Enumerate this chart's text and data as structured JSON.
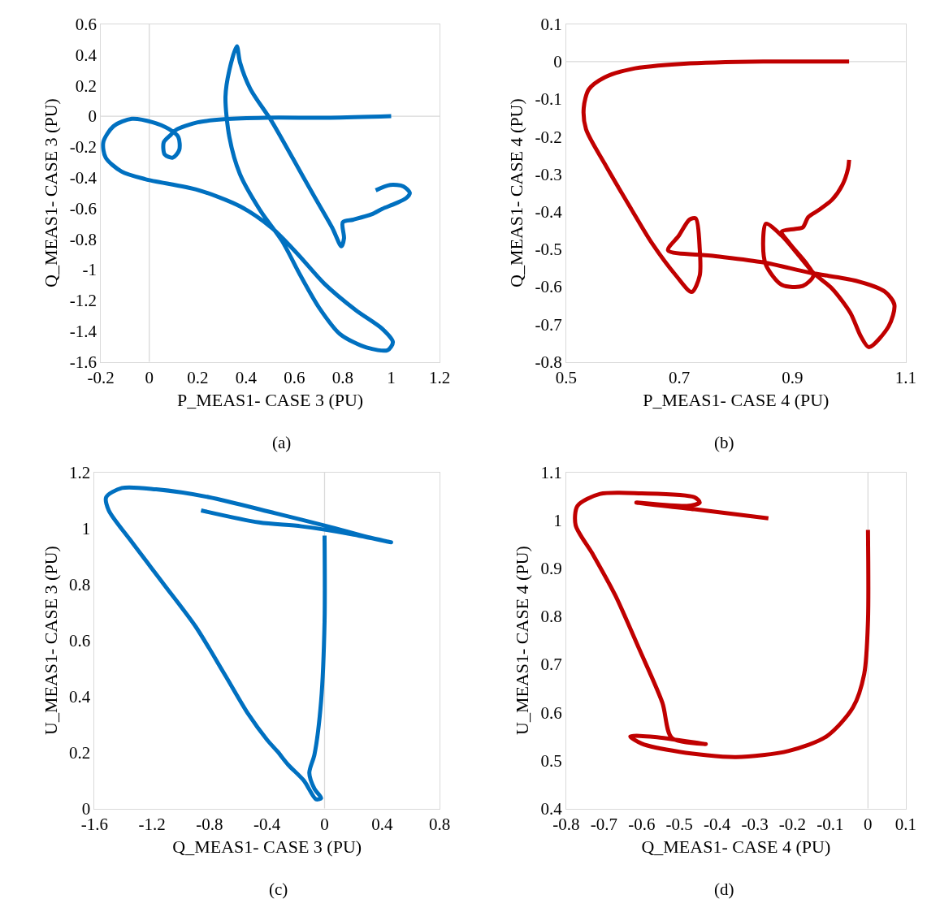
{
  "chart_data": [
    {
      "type": "line",
      "xlabel": "P_MEAS1- CASE 3 (PU)",
      "ylabel": "Q_MEAS1- CASE 3 (PU)",
      "annotations": [
        "(a)"
      ],
      "line_style": "solid",
      "grid": false,
      "xlim": [
        -0.2,
        1.2
      ],
      "xticks": [
        -0.2,
        0,
        0.2,
        0.4,
        0.6,
        0.8,
        1,
        1.2
      ],
      "ylim": [
        -1.6,
        0.6
      ],
      "yticks": [
        -1.6,
        -1.4,
        -1.2,
        -1,
        -0.8,
        -0.6,
        -0.4,
        -0.2,
        0,
        0.2,
        0.4,
        0.6
      ],
      "ref_lines": [
        {
          "axis": "x",
          "value": 0,
          "color": "#d9d9d9"
        },
        {
          "axis": "y",
          "value": 0,
          "color": "#d9d9d9"
        }
      ],
      "series": [
        {
          "color": "#0070c0",
          "x": [
            1.0,
            0.75,
            0.48,
            0.31,
            0.2,
            0.11,
            0.09,
            0.06,
            0.064,
            0.097,
            0.124,
            0.12,
            0.08,
            0.015,
            -0.072,
            -0.148,
            -0.19,
            -0.18,
            -0.115,
            -0.017,
            0.2,
            0.375,
            0.505,
            0.614,
            0.723,
            0.854,
            0.963,
            1.007,
            0.985,
            0.898,
            0.789,
            0.702,
            0.625,
            0.549,
            0.462,
            0.375,
            0.331,
            0.315,
            0.331,
            0.362,
            0.375,
            0.418,
            0.505,
            0.593,
            0.68,
            0.756,
            0.794,
            0.805,
            0.8,
            0.843,
            0.919,
            0.963,
            1.017,
            1.061,
            1.077,
            1.05,
            0.996,
            0.936
          ],
          "values": [
            0.0,
            -0.01,
            -0.01,
            -0.02,
            -0.04,
            -0.09,
            -0.12,
            -0.17,
            -0.25,
            -0.27,
            -0.22,
            -0.135,
            -0.083,
            -0.04,
            -0.017,
            -0.066,
            -0.17,
            -0.27,
            -0.36,
            -0.41,
            -0.48,
            -0.587,
            -0.726,
            -0.899,
            -1.09,
            -1.264,
            -1.385,
            -1.472,
            -1.524,
            -1.507,
            -1.42,
            -1.247,
            -1.038,
            -0.813,
            -0.622,
            -0.378,
            -0.135,
            0.125,
            0.299,
            0.455,
            0.351,
            0.177,
            -0.031,
            -0.274,
            -0.517,
            -0.726,
            -0.847,
            -0.795,
            -0.691,
            -0.674,
            -0.639,
            -0.604,
            -0.569,
            -0.535,
            -0.5,
            -0.457,
            -0.448,
            -0.483
          ]
        }
      ]
    },
    {
      "type": "line",
      "xlabel": "P_MEAS1- CASE 4 (PU)",
      "ylabel": "Q_MEAS1- CASE 4 (PU)",
      "annotations": [
        "(b)"
      ],
      "line_style": "solid",
      "grid": false,
      "xlim": [
        0.5,
        1.1
      ],
      "xticks": [
        0.5,
        0.7,
        0.9,
        1.1
      ],
      "ylim": [
        -0.8,
        0.1
      ],
      "yticks": [
        -0.8,
        -0.7,
        -0.6,
        -0.5,
        -0.4,
        -0.3,
        -0.2,
        -0.1,
        0,
        0.1
      ],
      "ref_lines": [
        {
          "axis": "y",
          "value": 0,
          "color": "#d9d9d9"
        }
      ],
      "series": [
        {
          "color": "#c00000",
          "x": [
            1.0,
            0.848,
            0.708,
            0.615,
            0.568,
            0.54,
            0.531,
            0.535,
            0.568,
            0.615,
            0.652,
            0.694,
            0.722,
            0.736,
            0.736,
            0.729,
            0.718,
            0.699,
            0.68,
            0.755,
            0.848,
            0.932,
            1.012,
            1.063,
            1.08,
            1.07,
            1.035,
            1.021,
            1.002,
            0.97,
            0.937,
            0.909,
            0.881,
            0.853,
            0.848,
            0.853,
            0.881,
            0.918,
            0.937,
            0.923,
            0.895,
            0.881,
            0.904,
            0.918,
            0.928,
            0.946,
            0.97,
            0.988,
            0.998,
            1.0
          ],
          "values": [
            0.0,
            0.0,
            -0.006,
            -0.02,
            -0.042,
            -0.074,
            -0.123,
            -0.18,
            -0.272,
            -0.393,
            -0.485,
            -0.57,
            -0.614,
            -0.57,
            -0.499,
            -0.418,
            -0.421,
            -0.464,
            -0.503,
            -0.517,
            -0.535,
            -0.563,
            -0.584,
            -0.613,
            -0.648,
            -0.705,
            -0.761,
            -0.733,
            -0.669,
            -0.605,
            -0.563,
            -0.513,
            -0.464,
            -0.432,
            -0.485,
            -0.542,
            -0.595,
            -0.598,
            -0.57,
            -0.535,
            -0.485,
            -0.453,
            -0.446,
            -0.442,
            -0.414,
            -0.396,
            -0.368,
            -0.329,
            -0.286,
            -0.262
          ]
        }
      ]
    },
    {
      "type": "line",
      "xlabel": "Q_MEAS1- CASE 3 (PU)",
      "ylabel": "U_MEAS1- CASE 3 (PU)",
      "annotations": [
        "(c)"
      ],
      "line_style": "solid",
      "grid": false,
      "xlim": [
        -1.6,
        0.8
      ],
      "xticks": [
        -1.6,
        -1.2,
        -0.8,
        -0.4,
        0,
        0.4,
        0.8
      ],
      "ylim": [
        0,
        1.2
      ],
      "yticks": [
        0,
        0.2,
        0.4,
        0.6,
        0.8,
        1,
        1.2
      ],
      "ref_lines": [
        {
          "axis": "x",
          "value": 0,
          "color": "#d9d9d9"
        }
      ],
      "series": [
        {
          "color": "#0070c0",
          "x": [
            0.0,
            0.0,
            -0.024,
            -0.07,
            -0.106,
            -0.07,
            -0.024,
            -0.06,
            -0.143,
            -0.253,
            -0.327,
            -0.4,
            -0.528,
            -0.693,
            -0.895,
            -1.116,
            -1.354,
            -1.501,
            -1.519,
            -1.409,
            -1.171,
            -0.804,
            -0.345,
            0.022,
            0.297,
            0.463,
            0.187,
            -0.161,
            -0.455,
            -0.859
          ],
          "values": [
            0.974,
            0.666,
            0.383,
            0.193,
            0.127,
            0.07,
            0.037,
            0.033,
            0.099,
            0.156,
            0.203,
            0.245,
            0.335,
            0.477,
            0.648,
            0.799,
            0.96,
            1.064,
            1.111,
            1.144,
            1.139,
            1.111,
            1.054,
            1.007,
            0.969,
            0.95,
            0.979,
            1.007,
            1.021,
            1.064
          ]
        }
      ]
    },
    {
      "type": "line",
      "xlabel": "Q_MEAS1- CASE 4 (PU)",
      "ylabel": "U_MEAS1- CASE 4 (PU)",
      "annotations": [
        "(d)"
      ],
      "line_style": "solid",
      "grid": false,
      "xlim": [
        -0.8,
        0.1
      ],
      "xticks": [
        -0.8,
        -0.7,
        -0.6,
        -0.5,
        -0.4,
        -0.3,
        -0.2,
        -0.1,
        0,
        0.1
      ],
      "ylim": [
        0.4,
        1.1
      ],
      "yticks": [
        0.4,
        0.5,
        0.6,
        0.7,
        0.8,
        0.9,
        1,
        1.1
      ],
      "ref_lines": [
        {
          "axis": "x",
          "value": 0,
          "color": "#d9d9d9"
        }
      ],
      "series": [
        {
          "color": "#c00000",
          "x": [
            0.0,
            0.0,
            -0.01,
            -0.04,
            -0.11,
            -0.21,
            -0.35,
            -0.5,
            -0.6,
            -0.63,
            -0.565,
            -0.43,
            -0.52,
            -0.545,
            -0.607,
            -0.67,
            -0.73,
            -0.775,
            -0.77,
            -0.71,
            -0.6,
            -0.46,
            -0.446,
            -0.48,
            -0.614,
            -0.46,
            -0.264
          ],
          "values": [
            0.98,
            0.79,
            0.68,
            0.61,
            0.55,
            0.52,
            0.507,
            0.518,
            0.535,
            0.55,
            0.549,
            0.534,
            0.547,
            0.62,
            0.733,
            0.844,
            0.93,
            0.99,
            1.03,
            1.055,
            1.056,
            1.048,
            1.037,
            1.03,
            1.037,
            1.023,
            1.004
          ]
        }
      ]
    }
  ]
}
